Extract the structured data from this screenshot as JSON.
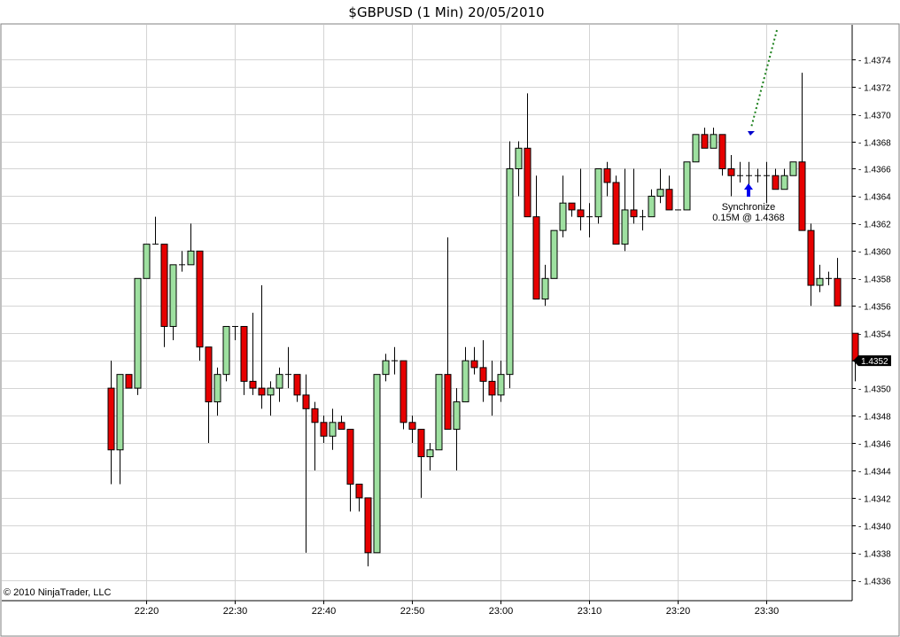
{
  "chart_data": {
    "type": "candlestick",
    "title": "$GBPUSD (1 Min)  20/05/2010",
    "copyright": "© 2010 NinjaTrader, LLC",
    "ylim": [
      1.43345,
      1.43765
    ],
    "y_ticks": [
      "1.4336",
      "1.4338",
      "1.4340",
      "1.4342",
      "1.4344",
      "1.4346",
      "1.4348",
      "1.4350",
      "1.4352",
      "1.4354",
      "1.4356",
      "1.4358",
      "1.4360",
      "1.4362",
      "1.4364",
      "1.4366",
      "1.4368",
      "1.4370",
      "1.4372",
      "1.4374"
    ],
    "x_ticks": [
      {
        "label": "22:20",
        "index": 4
      },
      {
        "label": "22:30",
        "index": 14
      },
      {
        "label": "22:40",
        "index": 24
      },
      {
        "label": "22:50",
        "index": 34
      },
      {
        "label": "23:00",
        "index": 44
      },
      {
        "label": "23:10",
        "index": 54
      },
      {
        "label": "23:20",
        "index": 64
      },
      {
        "label": "23:30",
        "index": 74
      }
    ],
    "grid": true,
    "last_price": "1.4352",
    "colors": {
      "up": "#9ee0a0",
      "down": "#e60000",
      "wick": "#000000",
      "grid": "#d4d4d4",
      "last_price_bg": "#000000"
    },
    "annotation": {
      "lines": [
        "Synchronize",
        "0.15M @ 1.4368"
      ],
      "bar_index": 72,
      "price": 1.4368
    },
    "series": [
      {
        "name": "$GBPUSD",
        "candles": [
          {
            "o": 1.435,
            "h": 1.4352,
            "l": 1.4343,
            "c": 1.43455
          },
          {
            "o": 1.43455,
            "h": 1.4351,
            "l": 1.4343,
            "c": 1.4351
          },
          {
            "o": 1.4351,
            "h": 1.4351,
            "l": 1.435,
            "c": 1.435
          },
          {
            "o": 1.435,
            "h": 1.4358,
            "l": 1.43495,
            "c": 1.4358
          },
          {
            "o": 1.4358,
            "h": 1.43605,
            "l": 1.4358,
            "c": 1.43605
          },
          {
            "o": 1.43605,
            "h": 1.43625,
            "l": 1.43605,
            "c": 1.43605
          },
          {
            "o": 1.43605,
            "h": 1.43605,
            "l": 1.4353,
            "c": 1.43545
          },
          {
            "o": 1.43545,
            "h": 1.4359,
            "l": 1.43535,
            "c": 1.4359
          },
          {
            "o": 1.4359,
            "h": 1.436,
            "l": 1.43585,
            "c": 1.4359
          },
          {
            "o": 1.4359,
            "h": 1.4362,
            "l": 1.4359,
            "c": 1.436
          },
          {
            "o": 1.436,
            "h": 1.436,
            "l": 1.4352,
            "c": 1.4353
          },
          {
            "o": 1.4353,
            "h": 1.4353,
            "l": 1.4346,
            "c": 1.4349
          },
          {
            "o": 1.4349,
            "h": 1.43515,
            "l": 1.4348,
            "c": 1.4351
          },
          {
            "o": 1.4351,
            "h": 1.43545,
            "l": 1.43505,
            "c": 1.43545
          },
          {
            "o": 1.43545,
            "h": 1.43545,
            "l": 1.43535,
            "c": 1.43545
          },
          {
            "o": 1.43545,
            "h": 1.43545,
            "l": 1.43495,
            "c": 1.43505
          },
          {
            "o": 1.43505,
            "h": 1.43555,
            "l": 1.43495,
            "c": 1.435
          },
          {
            "o": 1.435,
            "h": 1.43575,
            "l": 1.43485,
            "c": 1.43495
          },
          {
            "o": 1.43495,
            "h": 1.43505,
            "l": 1.4348,
            "c": 1.435
          },
          {
            "o": 1.435,
            "h": 1.43515,
            "l": 1.4349,
            "c": 1.4351
          },
          {
            "o": 1.4351,
            "h": 1.4353,
            "l": 1.435,
            "c": 1.4351
          },
          {
            "o": 1.4351,
            "h": 1.4351,
            "l": 1.4349,
            "c": 1.43495
          },
          {
            "o": 1.43495,
            "h": 1.4351,
            "l": 1.4338,
            "c": 1.43485
          },
          {
            "o": 1.43485,
            "h": 1.4349,
            "l": 1.4344,
            "c": 1.43475
          },
          {
            "o": 1.43475,
            "h": 1.4348,
            "l": 1.4346,
            "c": 1.43465
          },
          {
            "o": 1.43465,
            "h": 1.43485,
            "l": 1.43455,
            "c": 1.43475
          },
          {
            "o": 1.43475,
            "h": 1.4348,
            "l": 1.4347,
            "c": 1.4347
          },
          {
            "o": 1.4347,
            "h": 1.4347,
            "l": 1.4341,
            "c": 1.4343
          },
          {
            "o": 1.4343,
            "h": 1.4343,
            "l": 1.4341,
            "c": 1.4342
          },
          {
            "o": 1.4342,
            "h": 1.4342,
            "l": 1.4337,
            "c": 1.4338
          },
          {
            "o": 1.4338,
            "h": 1.4351,
            "l": 1.4338,
            "c": 1.4351
          },
          {
            "o": 1.4351,
            "h": 1.43525,
            "l": 1.43505,
            "c": 1.4352
          },
          {
            "o": 1.4352,
            "h": 1.4353,
            "l": 1.4351,
            "c": 1.4352
          },
          {
            "o": 1.4352,
            "h": 1.4352,
            "l": 1.4347,
            "c": 1.43475
          },
          {
            "o": 1.43475,
            "h": 1.4348,
            "l": 1.4346,
            "c": 1.4347
          },
          {
            "o": 1.4347,
            "h": 1.4347,
            "l": 1.4342,
            "c": 1.4345
          },
          {
            "o": 1.4345,
            "h": 1.4346,
            "l": 1.4344,
            "c": 1.43455
          },
          {
            "o": 1.43455,
            "h": 1.4351,
            "l": 1.43455,
            "c": 1.4351
          },
          {
            "o": 1.4351,
            "h": 1.4361,
            "l": 1.4347,
            "c": 1.4347
          },
          {
            "o": 1.4347,
            "h": 1.435,
            "l": 1.4344,
            "c": 1.4349
          },
          {
            "o": 1.4349,
            "h": 1.4353,
            "l": 1.4349,
            "c": 1.4352
          },
          {
            "o": 1.4352,
            "h": 1.4353,
            "l": 1.4351,
            "c": 1.43515
          },
          {
            "o": 1.43515,
            "h": 1.43535,
            "l": 1.4349,
            "c": 1.43505
          },
          {
            "o": 1.43505,
            "h": 1.4352,
            "l": 1.4348,
            "c": 1.43495
          },
          {
            "o": 1.43495,
            "h": 1.4352,
            "l": 1.4349,
            "c": 1.4351
          },
          {
            "o": 1.4351,
            "h": 1.4368,
            "l": 1.435,
            "c": 1.4366
          },
          {
            "o": 1.4366,
            "h": 1.4368,
            "l": 1.4364,
            "c": 1.43675
          },
          {
            "o": 1.43675,
            "h": 1.43715,
            "l": 1.43625,
            "c": 1.43625
          },
          {
            "o": 1.43625,
            "h": 1.43655,
            "l": 1.43565,
            "c": 1.43565
          },
          {
            "o": 1.43565,
            "h": 1.4359,
            "l": 1.4356,
            "c": 1.4358
          },
          {
            "o": 1.4358,
            "h": 1.43615,
            "l": 1.4358,
            "c": 1.43615
          },
          {
            "o": 1.43615,
            "h": 1.43655,
            "l": 1.4361,
            "c": 1.43635
          },
          {
            "o": 1.43635,
            "h": 1.43635,
            "l": 1.43625,
            "c": 1.4363
          },
          {
            "o": 1.4363,
            "h": 1.4366,
            "l": 1.43615,
            "c": 1.43625
          },
          {
            "o": 1.43625,
            "h": 1.43635,
            "l": 1.4361,
            "c": 1.43625
          },
          {
            "o": 1.43625,
            "h": 1.4366,
            "l": 1.4362,
            "c": 1.4366
          },
          {
            "o": 1.4366,
            "h": 1.43665,
            "l": 1.4364,
            "c": 1.4365
          },
          {
            "o": 1.4365,
            "h": 1.43655,
            "l": 1.43605,
            "c": 1.43605
          },
          {
            "o": 1.43605,
            "h": 1.4366,
            "l": 1.436,
            "c": 1.4363
          },
          {
            "o": 1.4363,
            "h": 1.4366,
            "l": 1.4362,
            "c": 1.43625
          },
          {
            "o": 1.43625,
            "h": 1.4363,
            "l": 1.43615,
            "c": 1.43625
          },
          {
            "o": 1.43625,
            "h": 1.43645,
            "l": 1.43625,
            "c": 1.4364
          },
          {
            "o": 1.4364,
            "h": 1.4366,
            "l": 1.43635,
            "c": 1.43645
          },
          {
            "o": 1.43645,
            "h": 1.43655,
            "l": 1.4363,
            "c": 1.4363
          },
          {
            "o": 1.4363,
            "h": 1.4363,
            "l": 1.4363,
            "c": 1.4363
          },
          {
            "o": 1.4363,
            "h": 1.43665,
            "l": 1.4363,
            "c": 1.43665
          },
          {
            "o": 1.43665,
            "h": 1.43685,
            "l": 1.43665,
            "c": 1.43685
          },
          {
            "o": 1.43685,
            "h": 1.4369,
            "l": 1.43675,
            "c": 1.43675
          },
          {
            "o": 1.43675,
            "h": 1.4369,
            "l": 1.43675,
            "c": 1.43685
          },
          {
            "o": 1.43685,
            "h": 1.43685,
            "l": 1.43655,
            "c": 1.4366
          },
          {
            "o": 1.4366,
            "h": 1.4367,
            "l": 1.4364,
            "c": 1.43655
          },
          {
            "o": 1.43655,
            "h": 1.43665,
            "l": 1.4365,
            "c": 1.43655
          },
          {
            "o": 1.43655,
            "h": 1.43665,
            "l": 1.4364,
            "c": 1.43655
          },
          {
            "o": 1.43655,
            "h": 1.4366,
            "l": 1.4365,
            "c": 1.43655
          },
          {
            "o": 1.43655,
            "h": 1.43665,
            "l": 1.43635,
            "c": 1.43655
          },
          {
            "o": 1.43655,
            "h": 1.4366,
            "l": 1.43645,
            "c": 1.43645
          },
          {
            "o": 1.43645,
            "h": 1.4366,
            "l": 1.43645,
            "c": 1.43655
          },
          {
            "o": 1.43655,
            "h": 1.43665,
            "l": 1.43655,
            "c": 1.43665
          },
          {
            "o": 1.43665,
            "h": 1.4373,
            "l": 1.43615,
            "c": 1.43615
          },
          {
            "o": 1.43615,
            "h": 1.4362,
            "l": 1.4356,
            "c": 1.43575
          },
          {
            "o": 1.43575,
            "h": 1.4359,
            "l": 1.4357,
            "c": 1.4358
          },
          {
            "o": 1.4358,
            "h": 1.43585,
            "l": 1.43575,
            "c": 1.4358
          },
          {
            "o": 1.4358,
            "h": 1.43595,
            "l": 1.4356,
            "c": 1.4356
          },
          null,
          {
            "o": 1.4354,
            "h": 1.4354,
            "l": 1.43505,
            "c": 1.4352
          }
        ]
      }
    ]
  }
}
